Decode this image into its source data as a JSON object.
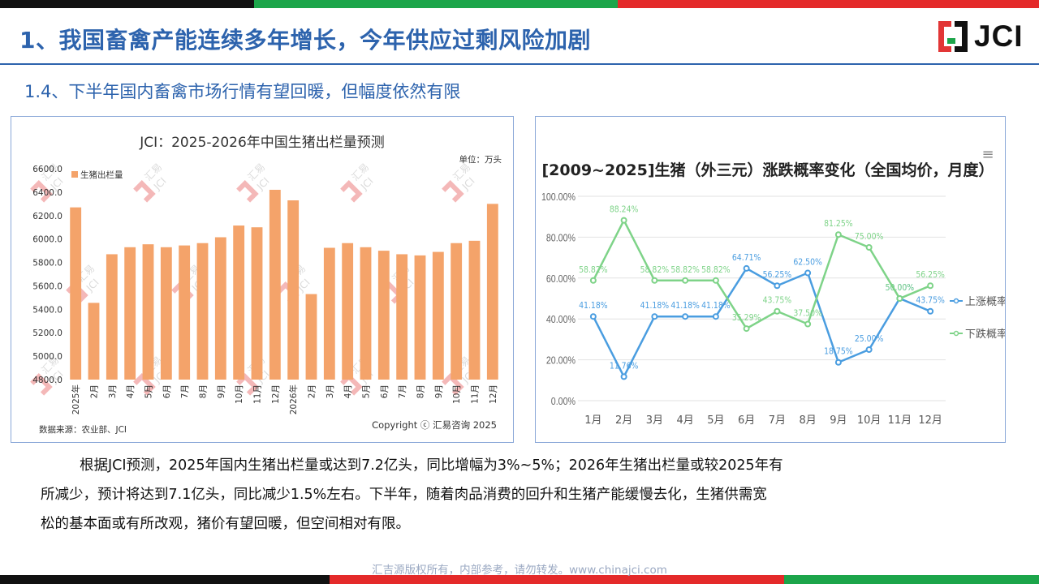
{
  "slide": {
    "title": "1、我国畜禽产能连续多年增长，今年供应过剩风险加剧",
    "subtitle": "1.4、下半年国内畜禽市场行情有望回暖，但幅度依然有限",
    "logo_text": "JCI",
    "paragraph_lines": [
      "根据JCI预测，2025年国内生猪出栏量或达到7.2亿头，同比增幅为3%~5%；2026年生猪出栏量或较2025年有",
      "所减少，预计将达到7.1亿头，同比减少1.5%左右。下半年，随着肉品消费的回升和生猪产能缓慢去化，生猪供需宽",
      "松的基本面或有所改观，猪价有望回暖，但空间相对有限。"
    ],
    "footer": "汇吉源版权所有，内部参考，请勿转发。www.chinajci.com"
  },
  "colors": {
    "brand_blue": "#2d63ad",
    "bar": "#f4a36a",
    "rise": "#4a9de0",
    "fall": "#7ed388",
    "logo_red": "#e23636",
    "logo_green": "#1ca54a"
  },
  "watermark": {
    "top": "汇易",
    "bottom": "JCI"
  },
  "chart_data": [
    {
      "type": "bar",
      "title": "JCI：2025-2026年中国生猪出栏量预测",
      "unit_label": "单位：万头",
      "legend": "生猪出栏量",
      "categories": [
        "2025年",
        "2月",
        "3月",
        "4月",
        "5月",
        "6月",
        "7月",
        "8月",
        "9月",
        "10月",
        "11月",
        "12月",
        "2026年",
        "2月",
        "3月",
        "4月",
        "5月",
        "6月",
        "7月",
        "8月",
        "9月",
        "10月",
        "11月",
        "12月"
      ],
      "values": [
        6270,
        5455,
        5870,
        5930,
        5955,
        5930,
        5945,
        5965,
        6015,
        6115,
        6100,
        6420,
        6330,
        5530,
        5925,
        5965,
        5930,
        5900,
        5870,
        5860,
        5890,
        5965,
        5985,
        6300
      ],
      "yticks": [
        "6600.0",
        "6400.0",
        "6200.0",
        "6000.0",
        "5800.0",
        "5600.0",
        "5400.0",
        "5200.0",
        "5000.0",
        "4800.0"
      ],
      "ylim": [
        4800,
        6600
      ],
      "source": "数据来源：农业部、JCI",
      "copyright": "Copyright ⓒ 汇易咨询 2025"
    },
    {
      "type": "line",
      "title": "[2009~2025]生猪（外三元）涨跌概率变化（全国均价，月度）",
      "menu_icon": "≡",
      "categories": [
        "1月",
        "2月",
        "3月",
        "4月",
        "5月",
        "6月",
        "7月",
        "8月",
        "9月",
        "10月",
        "11月",
        "12月"
      ],
      "yticks": [
        "100.00%",
        "80.00%",
        "60.00%",
        "40.00%",
        "20.00%",
        "0.00%"
      ],
      "ylim": [
        0,
        100
      ],
      "series": [
        {
          "name": "上涨概率",
          "values": [
            41.18,
            11.76,
            41.18,
            41.18,
            41.18,
            64.71,
            56.25,
            62.5,
            18.75,
            25.0,
            50.0,
            43.75
          ],
          "labels": [
            "41.18%",
            "11.76%",
            "41.18%",
            "41.18%",
            "41.18%",
            "64.71%",
            "56.25%",
            "62.50%",
            "18.75%",
            "25.00%",
            "50.00%",
            "43.75%"
          ]
        },
        {
          "name": "下跌概率",
          "values": [
            58.82,
            88.24,
            58.82,
            58.82,
            58.82,
            35.29,
            43.75,
            37.5,
            81.25,
            75.0,
            50.0,
            56.25
          ],
          "labels": [
            "58.82%",
            "88.24%",
            "58.82%",
            "58.82%",
            "58.82%",
            "35.29%",
            "43.75%",
            "37.50%",
            "81.25%",
            "75.00%",
            "50.00%",
            "56.25%"
          ]
        }
      ]
    }
  ]
}
